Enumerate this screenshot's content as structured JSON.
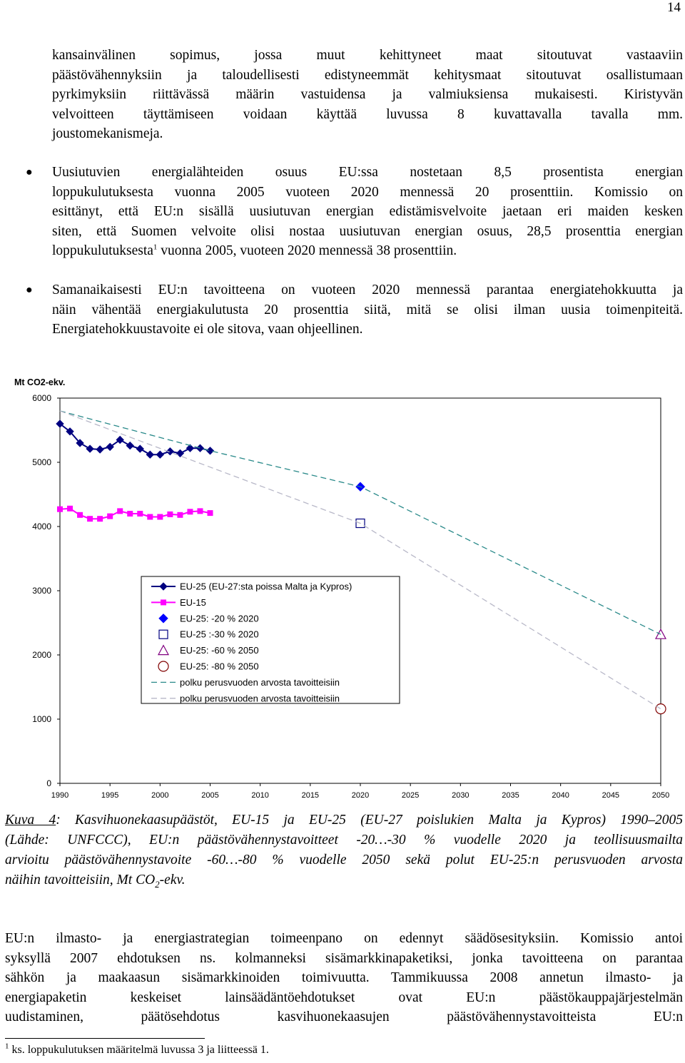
{
  "page": {
    "number": "14"
  },
  "intro_paragraph": [
    "kansainvälinen sopimus, jossa muut kehittyneet maat sitoutuvat vastaaviin",
    "päästövähennyksiin ja taloudellisesti edistyneemmät kehitysmaat sitoutuvat osallistumaan",
    "pyrkimyksiin riittävässä määrin vastuidensa ja valmiuksiensa mukaisesti. Kiristyvän",
    "velvoitteen täyttämiseen voidaan käyttää luvussa 8 kuvattavalla tavalla mm.",
    "joustomekanismeja."
  ],
  "bullet1": {
    "line1": "Uusiutuvien energialähteiden osuus EU:ssa nostetaan 8,5 prosentista energian",
    "line2": "loppukulutuksesta vuonna 2005 vuoteen 2020 mennessä 20 prosenttiin. Komissio on",
    "line3": "esittänyt, että EU:n sisällä uusiutuvan energian edistämisvelvoite jaetaan eri maiden kesken",
    "line4": "siten, että Suomen velvoite olisi nostaa uusiutuvan energian osuus, 28,5 prosenttia energian",
    "line5_a": "loppukulutuksesta",
    "line5_sup": "1",
    "line5_b": " vuonna 2005, vuoteen 2020 mennessä 38 prosenttiin."
  },
  "bullet2": [
    "Samanaikaisesti EU:n tavoitteena on vuoteen 2020 mennessä parantaa energiatehokkuutta ja",
    "näin vähentää energiakulutusta 20 prosenttia siitä, mitä se olisi ilman uusia toimenpiteitä.",
    "Energiatehokkuustavoite ei ole sitova, vaan ohjeellinen."
  ],
  "bullet_symbol": "●",
  "chart_data": {
    "type": "line",
    "ylabel": "Mt CO2-ekv.",
    "xlabel": "",
    "xlim": [
      1990,
      2050
    ],
    "ylim": [
      0,
      6000
    ],
    "x_ticks": [
      1990,
      1995,
      2000,
      2005,
      2010,
      2015,
      2020,
      2025,
      2030,
      2035,
      2040,
      2045,
      2050
    ],
    "y_ticks": [
      0,
      1000,
      2000,
      3000,
      4000,
      5000,
      6000
    ],
    "grid": false,
    "legend_position": "center-left",
    "series": [
      {
        "name": "EU-25 (EU-27:sta poissa Malta ja Kypros)",
        "color": "#000080",
        "marker": "diamond",
        "x": [
          1990,
          1991,
          1992,
          1993,
          1994,
          1995,
          1996,
          1997,
          1998,
          1999,
          2000,
          2001,
          2002,
          2003,
          2004,
          2005
        ],
        "y": [
          5600,
          5480,
          5300,
          5210,
          5200,
          5240,
          5350,
          5260,
          5210,
          5120,
          5120,
          5170,
          5140,
          5220,
          5220,
          5180
        ]
      },
      {
        "name": "EU-15",
        "color": "#ff00ff",
        "marker": "square",
        "x": [
          1990,
          1991,
          1992,
          1993,
          1994,
          1995,
          1996,
          1997,
          1998,
          1999,
          2000,
          2001,
          2002,
          2003,
          2004,
          2005
        ],
        "y": [
          4270,
          4280,
          4180,
          4120,
          4120,
          4160,
          4240,
          4200,
          4200,
          4150,
          4150,
          4190,
          4180,
          4230,
          4240,
          4210
        ]
      },
      {
        "name": "EU-25: -20 % 2020",
        "color": "#0000ff",
        "marker": "diamond-filled",
        "x": [
          2020
        ],
        "y": [
          4620
        ]
      },
      {
        "name": "EU-25 :-30 % 2020",
        "color": "#000080",
        "marker": "square-open",
        "x": [
          2020
        ],
        "y": [
          4050
        ]
      },
      {
        "name": "EU-25: -60 % 2050",
        "color": "#800080",
        "marker": "triangle-open",
        "x": [
          2050
        ],
        "y": [
          2320
        ]
      },
      {
        "name": "EU-25: -80 % 2050",
        "color": "#800000",
        "marker": "circle-open",
        "x": [
          2050
        ],
        "y": [
          1160
        ]
      },
      {
        "name": "polku perusvuoden arvosta tavoitteisiin",
        "color": "#2a8a8a",
        "marker": "none",
        "dash": "long",
        "x": [
          1990,
          2005,
          2020,
          2050
        ],
        "y": [
          5800,
          5180,
          4620,
          2320
        ]
      },
      {
        "name": "polku perusvuoden arvosta tavoitteisiin",
        "color": "#b8b8c8",
        "marker": "none",
        "dash": "long",
        "x": [
          1990,
          2020,
          2050
        ],
        "y": [
          5800,
          4050,
          1160
        ]
      }
    ]
  },
  "caption": {
    "kuva": "Kuva 4",
    "line1_rest": ": Kasvihuonekaasupäästöt, EU-15 ja EU-25 (EU-27 poislukien Malta ja Kypros) 1990–2005",
    "line2": "(Lähde: UNFCCC), EU:n päästövähennystavoitteet -20…-30 % vuodelle 2020 ja teollisuusmailta",
    "line3": "arvioitu päästövähennystavoite -60…-80 % vuodelle 2050 sekä polut EU-25:n perusvuoden arvosta",
    "line4_a": "näihin tavoitteisiin, Mt CO",
    "line4_sub": "2",
    "line4_b": "-ekv."
  },
  "body2": [
    "EU:n ilmasto- ja energiastrategian toimeenpano on edennyt säädösesityksiin. Komissio antoi",
    "syksyllä 2007 ehdotuksen ns. kolmanneksi sisämarkkinapaketiksi, jonka tavoitteena on parantaa",
    "sähkön ja maakaasun sisämarkkinoiden toimivuutta. Tammikuussa 2008 annetun ilmasto- ja",
    "energiapaketin keskeiset lainsäädäntöehdotukset ovat EU:n päästökauppajärjestelmän",
    "uudistaminen, päätösehdotus kasvihuonekaasujen päästövähennystavoitteista EU:n"
  ],
  "footnote": {
    "mark": "1",
    "text": " ks. loppukulutuksen määritelmä luvussa 3 ja liitteessä 1."
  }
}
